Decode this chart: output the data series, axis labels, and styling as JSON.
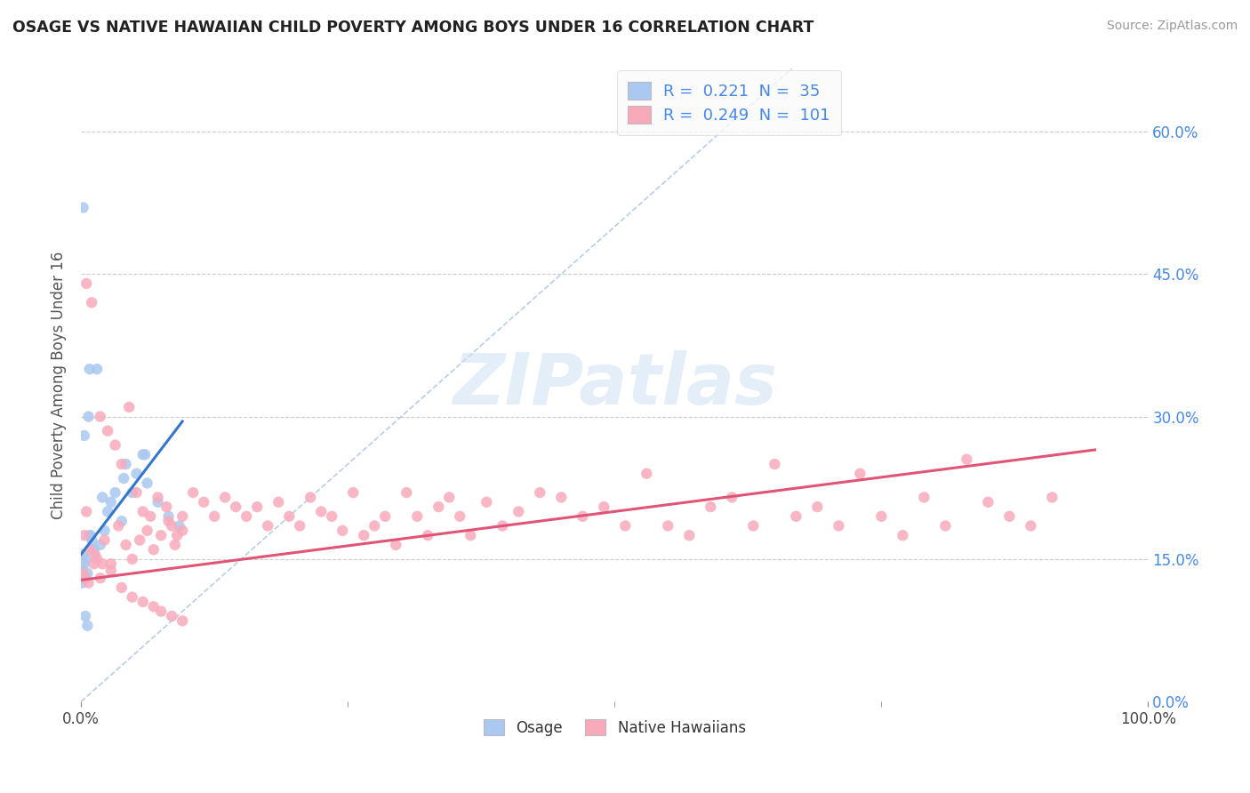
{
  "title": "OSAGE VS NATIVE HAWAIIAN CHILD POVERTY AMONG BOYS UNDER 16 CORRELATION CHART",
  "source": "Source: ZipAtlas.com",
  "ylabel": "Child Poverty Among Boys Under 16",
  "xlim": [
    0,
    1.0
  ],
  "ylim": [
    0,
    0.666
  ],
  "ytick_vals": [
    0.0,
    0.15,
    0.3,
    0.45,
    0.6
  ],
  "ytick_labels": [
    "0.0%",
    "15.0%",
    "30.0%",
    "45.0%",
    "60.0%"
  ],
  "xtick_vals": [
    0.0,
    1.0
  ],
  "xtick_labels": [
    "0.0%",
    "100.0%"
  ],
  "legend_labels": [
    "Osage",
    "Native Hawaiians"
  ],
  "osage_R": 0.221,
  "osage_N": 35,
  "nh_R": 0.249,
  "nh_N": 101,
  "osage_color": "#aac8f0",
  "nh_color": "#f8aabb",
  "osage_line_color": "#3377cc",
  "nh_line_color": "#e05575",
  "ref_line_color": "#b0c8e8",
  "background_color": "#ffffff",
  "osage_x": [
    0.008,
    0.002,
    0.012,
    0.018,
    0.005,
    0.003,
    0.001,
    0.006,
    0.004,
    0.01,
    0.002,
    0.008,
    0.015,
    0.007,
    0.003,
    0.025,
    0.022,
    0.028,
    0.032,
    0.038,
    0.042,
    0.048,
    0.052,
    0.058,
    0.062,
    0.072,
    0.082,
    0.092,
    0.001,
    0.009,
    0.004,
    0.006,
    0.02,
    0.04,
    0.06
  ],
  "osage_y": [
    0.175,
    0.155,
    0.16,
    0.165,
    0.15,
    0.145,
    0.14,
    0.135,
    0.13,
    0.17,
    0.52,
    0.35,
    0.35,
    0.3,
    0.28,
    0.2,
    0.18,
    0.21,
    0.22,
    0.19,
    0.25,
    0.22,
    0.24,
    0.26,
    0.23,
    0.21,
    0.195,
    0.185,
    0.125,
    0.175,
    0.09,
    0.08,
    0.215,
    0.235,
    0.26
  ],
  "nh_x": [
    0.005,
    0.002,
    0.008,
    0.012,
    0.018,
    0.003,
    0.015,
    0.022,
    0.028,
    0.035,
    0.042,
    0.048,
    0.055,
    0.062,
    0.068,
    0.075,
    0.082,
    0.088,
    0.095,
    0.005,
    0.01,
    0.018,
    0.025,
    0.032,
    0.038,
    0.045,
    0.052,
    0.058,
    0.065,
    0.072,
    0.08,
    0.085,
    0.09,
    0.095,
    0.105,
    0.115,
    0.125,
    0.135,
    0.145,
    0.155,
    0.165,
    0.175,
    0.185,
    0.195,
    0.205,
    0.215,
    0.225,
    0.235,
    0.245,
    0.255,
    0.265,
    0.275,
    0.285,
    0.295,
    0.305,
    0.315,
    0.325,
    0.335,
    0.345,
    0.355,
    0.365,
    0.38,
    0.395,
    0.41,
    0.43,
    0.45,
    0.47,
    0.49,
    0.51,
    0.53,
    0.55,
    0.57,
    0.59,
    0.61,
    0.63,
    0.65,
    0.67,
    0.69,
    0.71,
    0.73,
    0.75,
    0.77,
    0.79,
    0.81,
    0.83,
    0.85,
    0.87,
    0.89,
    0.91,
    0.003,
    0.007,
    0.013,
    0.02,
    0.028,
    0.038,
    0.048,
    0.058,
    0.068,
    0.075,
    0.085,
    0.095
  ],
  "nh_y": [
    0.2,
    0.135,
    0.16,
    0.145,
    0.13,
    0.175,
    0.15,
    0.17,
    0.145,
    0.185,
    0.165,
    0.15,
    0.17,
    0.18,
    0.16,
    0.175,
    0.19,
    0.165,
    0.18,
    0.44,
    0.42,
    0.3,
    0.285,
    0.27,
    0.25,
    0.31,
    0.22,
    0.2,
    0.195,
    0.215,
    0.205,
    0.185,
    0.175,
    0.195,
    0.22,
    0.21,
    0.195,
    0.215,
    0.205,
    0.195,
    0.205,
    0.185,
    0.21,
    0.195,
    0.185,
    0.215,
    0.2,
    0.195,
    0.18,
    0.22,
    0.175,
    0.185,
    0.195,
    0.165,
    0.22,
    0.195,
    0.175,
    0.205,
    0.215,
    0.195,
    0.175,
    0.21,
    0.185,
    0.2,
    0.22,
    0.215,
    0.195,
    0.205,
    0.185,
    0.24,
    0.185,
    0.175,
    0.205,
    0.215,
    0.185,
    0.25,
    0.195,
    0.205,
    0.185,
    0.24,
    0.195,
    0.175,
    0.215,
    0.185,
    0.255,
    0.21,
    0.195,
    0.185,
    0.215,
    0.13,
    0.125,
    0.155,
    0.145,
    0.138,
    0.12,
    0.11,
    0.105,
    0.1,
    0.095,
    0.09,
    0.085
  ],
  "osage_line_x": [
    0.0,
    0.095
  ],
  "osage_line_y": [
    0.155,
    0.295
  ],
  "nh_line_x": [
    0.0,
    0.95
  ],
  "nh_line_y": [
    0.128,
    0.265
  ]
}
